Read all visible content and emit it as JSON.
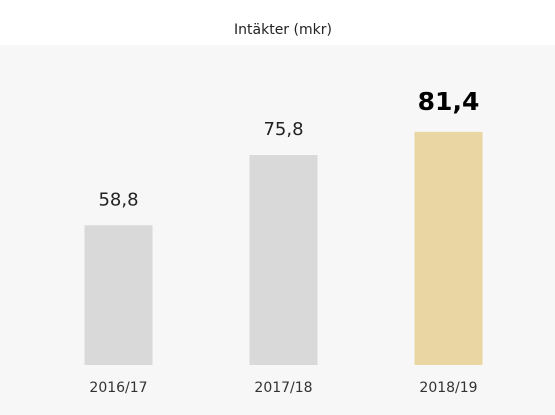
{
  "chart_data": {
    "type": "bar",
    "title": "Intäkter (mkr)",
    "categories": [
      "2016/17",
      "2017/18",
      "2018/19"
    ],
    "values": [
      58.8,
      75.8,
      81.4
    ],
    "value_labels": [
      "58,8",
      "75,8",
      "81,4"
    ],
    "colors": [
      "#d9d9d9",
      "#d9d9d9",
      "#ead6a2"
    ],
    "ylim": [
      25,
      85
    ]
  }
}
